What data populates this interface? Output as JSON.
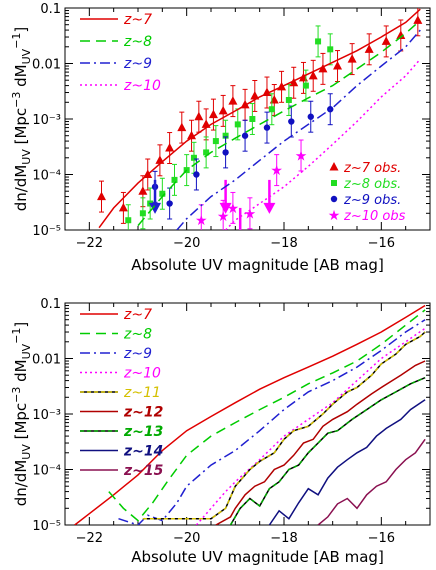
{
  "chart_data": [
    {
      "type": "line",
      "xlabel": "Absolute UV magnitude [AB mag]",
      "ylabel": "dn/dM_UV [Mpc^-3 dM_UV^-1]",
      "xlim": [
        -22.5,
        -15
      ],
      "ylim": [
        1e-05,
        0.1
      ],
      "yscale": "log",
      "x_ticks": [
        "−22",
        "−20",
        "−18",
        "−16"
      ],
      "y_ticks": [
        "10⁻⁵",
        "10⁻⁴",
        "10⁻³",
        "0.01",
        "0.1"
      ],
      "legend_position": "top-left",
      "series": [
        {
          "name": "z~7",
          "color": "#e00000",
          "dash": "solid",
          "x": [
            -21.8,
            -21.5,
            -21,
            -20.5,
            -20,
            -19.5,
            -19,
            -18.5,
            -18,
            -17.5,
            -17,
            -16.5,
            -16,
            -15.5,
            -15.2
          ],
          "y": [
            1.1e-05,
            2.5e-05,
            7e-05,
            0.00017,
            0.0004,
            0.0008,
            0.0014,
            0.0025,
            0.004,
            0.0065,
            0.0105,
            0.017,
            0.03,
            0.055,
            0.095
          ]
        },
        {
          "name": "z~8",
          "color": "#00cc00",
          "dash": "10,6",
          "x": [
            -21,
            -20.5,
            -20,
            -19.5,
            -19,
            -18.5,
            -18,
            -17.5,
            -17,
            -16.5,
            -16,
            -15.5,
            -15.2
          ],
          "y": [
            1.2e-05,
            4e-05,
            0.00012,
            0.00025,
            0.00045,
            0.0008,
            0.0014,
            0.0024,
            0.004,
            0.008,
            0.016,
            0.035,
            0.06
          ]
        },
        {
          "name": "z~9",
          "color": "#2020d0",
          "dash": "10,4,2,4",
          "x": [
            -20.2,
            -20,
            -19.5,
            -19,
            -18.5,
            -18,
            -17.5,
            -17,
            -16.5,
            -16,
            -15.5,
            -15.2
          ],
          "y": [
            1e-05,
            1.6e-05,
            4e-05,
            8e-05,
            0.00018,
            0.0004,
            0.0008,
            0.0016,
            0.004,
            0.009,
            0.02,
            0.04
          ]
        },
        {
          "name": "z~10",
          "color": "#ff00ff",
          "dash": "2,3",
          "x": [
            -19.2,
            -19,
            -18.5,
            -18,
            -17.5,
            -17,
            -16.5,
            -16,
            -15.5,
            -15.2
          ],
          "y": [
            1e-05,
            1.5e-05,
            3e-05,
            6e-05,
            0.00014,
            0.00035,
            0.0009,
            0.0025,
            0.006,
            0.012
          ]
        }
      ],
      "observations": [
        {
          "name": "z~7 obs.",
          "color": "#e00000",
          "marker": "triangle",
          "points": [
            [
              -21.75,
              4e-05
            ],
            [
              -21.3,
              2.5e-05
            ],
            [
              -20.9,
              5e-05
            ],
            [
              -20.8,
              0.0001
            ],
            [
              -20.55,
              0.00018
            ],
            [
              -20.35,
              0.0003
            ],
            [
              -20.1,
              0.0007
            ],
            [
              -19.9,
              0.0005
            ],
            [
              -19.75,
              0.0011
            ],
            [
              -19.6,
              0.0008
            ],
            [
              -19.45,
              0.0012
            ],
            [
              -19.25,
              0.0014
            ],
            [
              -19.05,
              0.0021
            ],
            [
              -18.8,
              0.0018
            ],
            [
              -18.6,
              0.0026
            ],
            [
              -18.35,
              0.003
            ],
            [
              -18.2,
              0.0022
            ],
            [
              -18.05,
              0.0038
            ],
            [
              -17.8,
              0.0045
            ],
            [
              -17.6,
              0.0055
            ],
            [
              -17.4,
              0.006
            ],
            [
              -17.2,
              0.008
            ],
            [
              -16.9,
              0.009
            ],
            [
              -16.6,
              0.012
            ],
            [
              -16.25,
              0.018
            ],
            [
              -15.9,
              0.025
            ],
            [
              -15.6,
              0.032
            ],
            [
              -15.25,
              0.06
            ]
          ]
        },
        {
          "name": "z~8 obs.",
          "color": "#22dd22",
          "marker": "square",
          "points": [
            [
              -21.2,
              1.5e-05
            ],
            [
              -20.9,
              2e-05
            ],
            [
              -20.75,
              3e-05
            ],
            [
              -20.5,
              4.5e-05
            ],
            [
              -20.25,
              8e-05
            ],
            [
              -20.0,
              0.00012
            ],
            [
              -19.85,
              0.0002
            ],
            [
              -19.6,
              0.00025
            ],
            [
              -19.4,
              0.0004
            ],
            [
              -19.2,
              0.0005
            ],
            [
              -18.95,
              0.0008
            ],
            [
              -18.65,
              0.001
            ],
            [
              -18.25,
              0.0015
            ],
            [
              -17.9,
              0.0022
            ],
            [
              -17.55,
              0.004
            ],
            [
              -17.3,
              0.025
            ],
            [
              -17.05,
              0.018
            ]
          ]
        },
        {
          "name": "z~9 obs.",
          "color": "#1010c0",
          "marker": "circle",
          "points": [
            [
              -20.65,
              6e-05
            ],
            [
              -20.35,
              3e-05
            ],
            [
              -19.8,
              0.0001
            ],
            [
              -19.2,
              0.00025
            ],
            [
              -18.8,
              0.0005
            ],
            [
              -18.35,
              0.0007
            ],
            [
              -17.85,
              0.0009
            ],
            [
              -17.45,
              0.0011
            ],
            [
              -17.05,
              0.0015
            ]
          ]
        },
        {
          "name": "z~10 obs",
          "color": "#ff00ff",
          "marker": "star",
          "points": [
            [
              -19.7,
              1.5e-05
            ],
            [
              -19.25,
              1.8e-05
            ],
            [
              -19.05,
              2.5e-05
            ],
            [
              -18.7,
              2e-05
            ],
            [
              -18.15,
              0.00012
            ],
            [
              -17.65,
              0.00022
            ]
          ]
        }
      ],
      "upper_limits": [
        {
          "color": "#2020d0",
          "x": -20.65,
          "y": 8e-05
        },
        {
          "color": "#ff00ff",
          "x": -19.2,
          "y": 8e-05
        },
        {
          "color": "#ff00ff",
          "x": -18.9,
          "y": 2.5e-05
        },
        {
          "color": "#ff00ff",
          "x": -18.3,
          "y": 8e-05
        }
      ]
    },
    {
      "type": "line",
      "xlabel": "Absolute UV magnitude [AB mag]",
      "ylabel": "dn/dM_UV [Mpc^-3 dM_UV^-1]",
      "xlim": [
        -22.5,
        -15
      ],
      "ylim": [
        1e-05,
        0.1
      ],
      "yscale": "log",
      "x_ticks": [
        "−22",
        "−20",
        "−18",
        "−16"
      ],
      "y_ticks": [
        "10⁻⁵",
        "10⁻⁴",
        "10⁻³",
        "0.01",
        "0.1"
      ],
      "legend_position": "top-left",
      "series": [
        {
          "name": "z~7",
          "color": "#e00000",
          "dash": "solid",
          "x": [
            -22.3,
            -22,
            -21.5,
            -21,
            -20.5,
            -20,
            -19.5,
            -19,
            -18.5,
            -18,
            -17.5,
            -17,
            -16.5,
            -16,
            -15.5,
            -15.1
          ],
          "y": [
            1e-05,
            1.6e-05,
            3.5e-05,
            8e-05,
            0.00022,
            0.0005,
            0.0009,
            0.0016,
            0.0028,
            0.0045,
            0.007,
            0.011,
            0.018,
            0.03,
            0.055,
            0.09
          ]
        },
        {
          "name": "z~8",
          "color": "#00cc00",
          "dash": "10,6",
          "x": [
            -21.6,
            -21.3,
            -21,
            -20.7,
            -20.4,
            -20,
            -19.5,
            -19,
            -18.5,
            -18,
            -17.5,
            -17,
            -16.5,
            -16,
            -15.5,
            -15.1
          ],
          "y": [
            4e-05,
            2e-05,
            1.2e-05,
            2.5e-05,
            6e-05,
            0.00018,
            0.0004,
            0.0007,
            0.0012,
            0.002,
            0.0035,
            0.0055,
            0.009,
            0.018,
            0.04,
            0.075
          ]
        },
        {
          "name": "z~9",
          "color": "#2020d0",
          "dash": "10,4,2,4",
          "x": [
            -21.4,
            -21,
            -20.8,
            -20.5,
            -20.2,
            -20,
            -19.5,
            -19,
            -18.5,
            -18,
            -17.5,
            -17,
            -16.5,
            -16,
            -15.5,
            -15.1
          ],
          "y": [
            1.3e-05,
            1e-05,
            1.5e-05,
            1.2e-05,
            2.5e-05,
            5e-05,
            0.00012,
            0.00022,
            0.0005,
            0.0012,
            0.0025,
            0.004,
            0.007,
            0.014,
            0.03,
            0.05
          ]
        },
        {
          "name": "z~10",
          "color": "#ff00ff",
          "dash": "2,3",
          "x": [
            -19.8,
            -19.5,
            -19.2,
            -19,
            -18.5,
            -18,
            -17.5,
            -17,
            -16.5,
            -16,
            -15.5,
            -15.1
          ],
          "y": [
            1e-05,
            2e-05,
            4e-05,
            6e-05,
            0.00015,
            0.0004,
            0.0008,
            0.0016,
            0.004,
            0.01,
            0.02,
            0.035
          ]
        },
        {
          "name": "z~11",
          "color": "#d4c000",
          "dash": "solid",
          "x": [
            -20.9,
            -20,
            -19.5,
            -19.2,
            -19,
            -18.7,
            -18.5,
            -18.2,
            -18,
            -17.8,
            -17.5,
            -17.2,
            -17,
            -16.7,
            -16.5,
            -16.2,
            -16,
            -15.7,
            -15.5,
            -15.2,
            -15.1
          ],
          "y": [
            1.3e-05,
            1.3e-05,
            1.3e-05,
            2e-05,
            5e-05,
            0.0001,
            0.00014,
            0.0002,
            0.00035,
            0.0005,
            0.0006,
            0.001,
            0.0015,
            0.0025,
            0.003,
            0.005,
            0.008,
            0.012,
            0.018,
            0.025,
            0.03
          ]
        },
        {
          "name": "z~12",
          "color": "#b00000",
          "dash": "solid",
          "x": [
            -19.4,
            -19.1,
            -19,
            -18.8,
            -18.6,
            -18.4,
            -18.2,
            -18,
            -17.8,
            -17.6,
            -17.4,
            -17.2,
            -17,
            -16.7,
            -16.5,
            -16.2,
            -16,
            -15.6,
            -15.3,
            -15.1
          ],
          "y": [
            1e-05,
            1.4e-05,
            2e-05,
            3.5e-05,
            5e-05,
            6e-05,
            0.0001,
            0.00012,
            0.00018,
            0.0003,
            0.00035,
            0.0006,
            0.0008,
            0.0011,
            0.0015,
            0.0023,
            0.003,
            0.005,
            0.0075,
            0.009
          ]
        },
        {
          "name": "z~13",
          "color": "#00aa00",
          "dash": "solid",
          "x": [
            -19.1,
            -18.9,
            -18.7,
            -18.5,
            -18.3,
            -18.1,
            -17.9,
            -17.7,
            -17.5,
            -17.3,
            -17.1,
            -16.9,
            -16.6,
            -16.3,
            -16,
            -15.7,
            -15.4,
            -15.1
          ],
          "y": [
            1e-05,
            2e-05,
            3e-05,
            2.2e-05,
            4.5e-05,
            6e-05,
            0.0001,
            0.00012,
            0.0002,
            0.0003,
            0.00045,
            0.0005,
            0.0008,
            0.0012,
            0.0018,
            0.0025,
            0.0035,
            0.0045
          ]
        },
        {
          "name": "z~14",
          "color": "#101080",
          "dash": "solid",
          "x": [
            -18.3,
            -18.1,
            -17.9,
            -17.7,
            -17.5,
            -17.3,
            -17.1,
            -16.9,
            -16.7,
            -16.5,
            -16.3,
            -16.1,
            -15.9,
            -15.6,
            -15.4,
            -15.1
          ],
          "y": [
            1e-05,
            1.8e-05,
            1.3e-05,
            2.5e-05,
            4.5e-05,
            3.5e-05,
            7e-05,
            0.00011,
            0.00015,
            0.0002,
            0.00025,
            0.0004,
            0.00055,
            0.0008,
            0.0012,
            0.0018
          ]
        },
        {
          "name": "z~15",
          "color": "#8a1050",
          "dash": "solid",
          "x": [
            -17.3,
            -17.1,
            -16.9,
            -16.7,
            -16.5,
            -16.3,
            -16.1,
            -15.9,
            -15.7,
            -15.5,
            -15.3,
            -15.1
          ],
          "y": [
            1e-05,
            1.4e-05,
            2.4e-05,
            3e-05,
            2e-05,
            3.5e-05,
            5e-05,
            6e-05,
            0.0001,
            0.00015,
            0.0002,
            0.00035
          ]
        }
      ]
    }
  ]
}
